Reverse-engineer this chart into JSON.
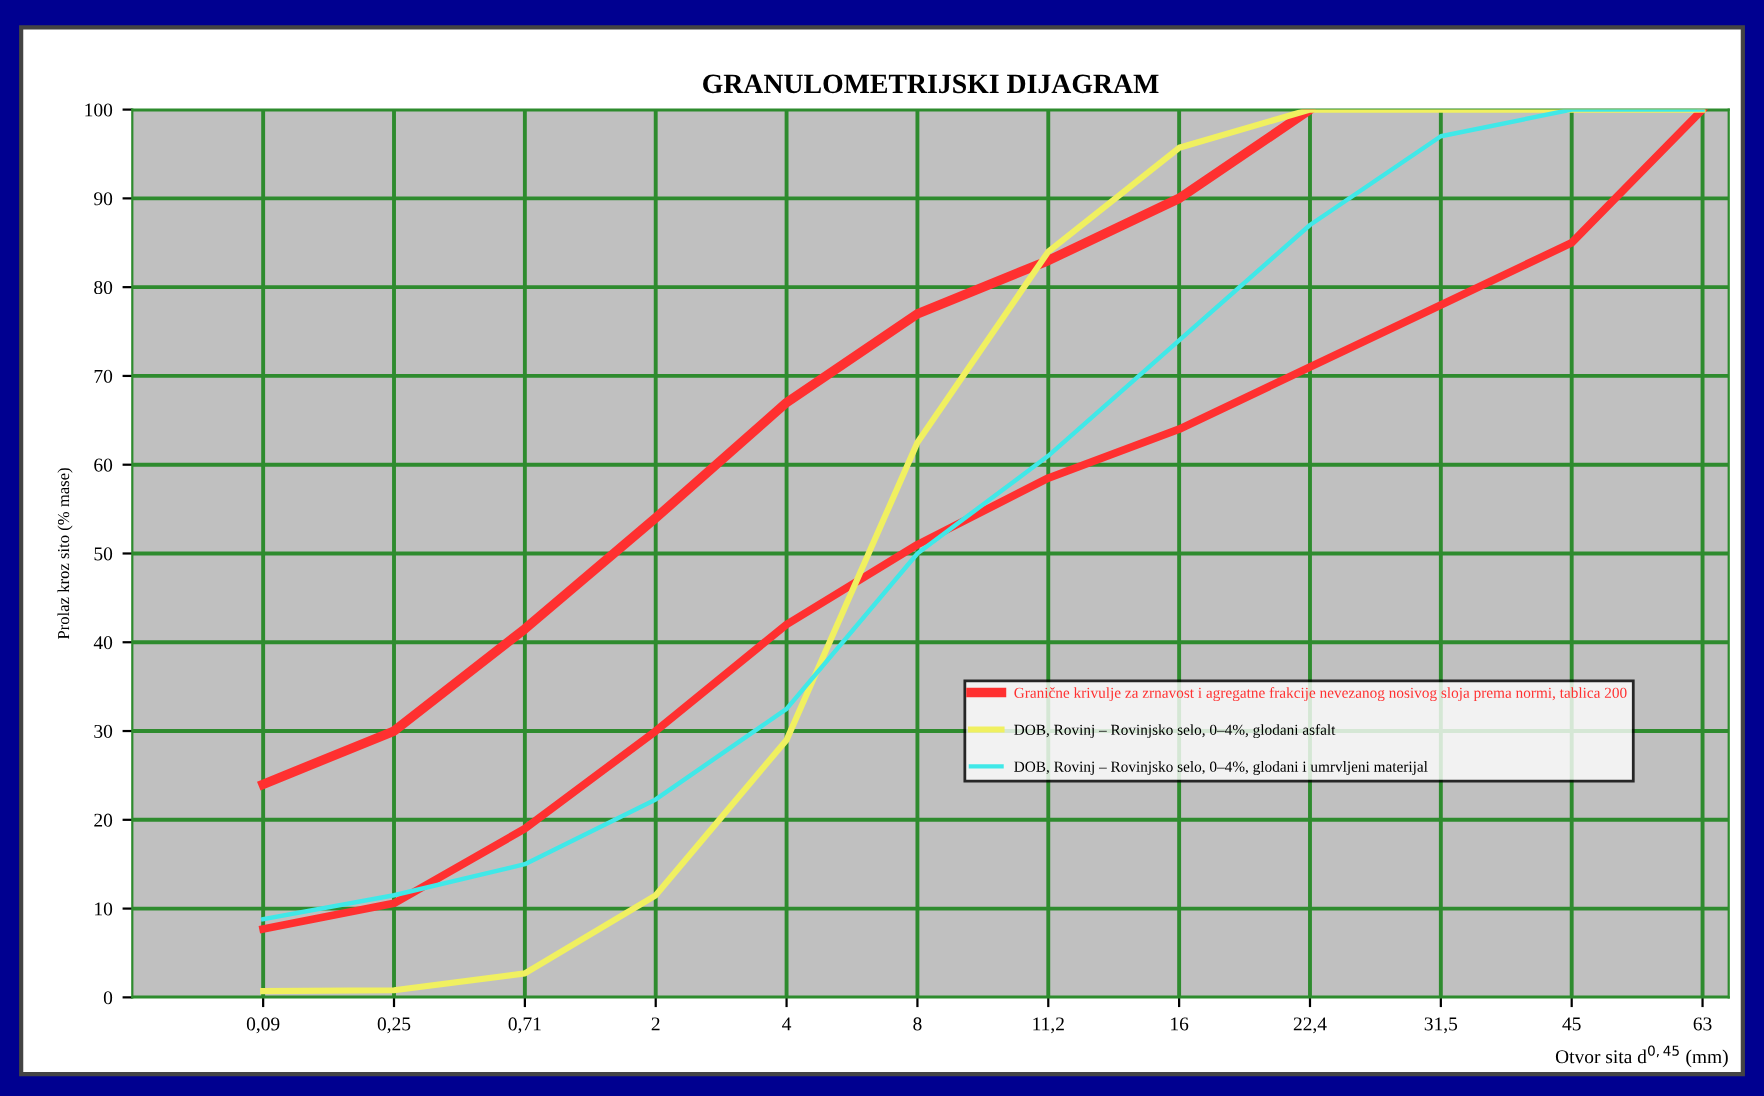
{
  "chart_data": {
    "type": "line",
    "title": "GRANULOMETRIJSKI DIJAGRAM",
    "xlabel": "Otvor sita d$^{0,45}$ (mm)",
    "ylabel": "Prolaz kroz sito (% mase)",
    "categories": [
      "0,09",
      "0,25",
      "0,71",
      "2",
      "4",
      "8",
      "11,2",
      "16",
      "22,4",
      "31,5",
      "45",
      "63"
    ],
    "series": [
      {
        "name": "Granične krivulje za zrnavost i agregatne frakcije nevezanog nosivog sloja prema normi, tablica 200",
        "color": "#ff3030",
        "values": [
          24,
          30,
          41.5,
          54,
          67,
          77,
          83,
          90,
          100,
          null,
          null,
          null
        ]
      },
      {
        "color": "#ff3030",
        "values": [
          7.7,
          10.6,
          19,
          30,
          42,
          51,
          58.5,
          64,
          71,
          78,
          85,
          100
        ]
      },
      {
        "name": "DOB, Rovinj – Rovinjsko selo, 0–4%, glodani asfalt",
        "color": "#f0f060",
        "values": [
          0.7,
          0.8,
          2.7,
          11.5,
          29,
          62.5,
          84,
          95.7,
          100,
          100,
          100,
          100
        ]
      },
      {
        "name": "DOB, Rovinj – Rovinjsko selo, 0–4%, glodani i umrvljeni materijal",
        "color": "#40e8e8",
        "values": [
          8.8,
          11.5,
          15,
          22.3,
          32.5,
          50,
          61,
          74,
          87,
          97,
          100,
          100
        ]
      }
    ],
    "ylim": [
      0,
      100
    ],
    "yticks": [
      0,
      10,
      20,
      30,
      40,
      50,
      60,
      70,
      80,
      90,
      100
    ],
    "grid": true,
    "legend": "right",
    "marker": "none",
    "line_style": "solid"
  }
}
